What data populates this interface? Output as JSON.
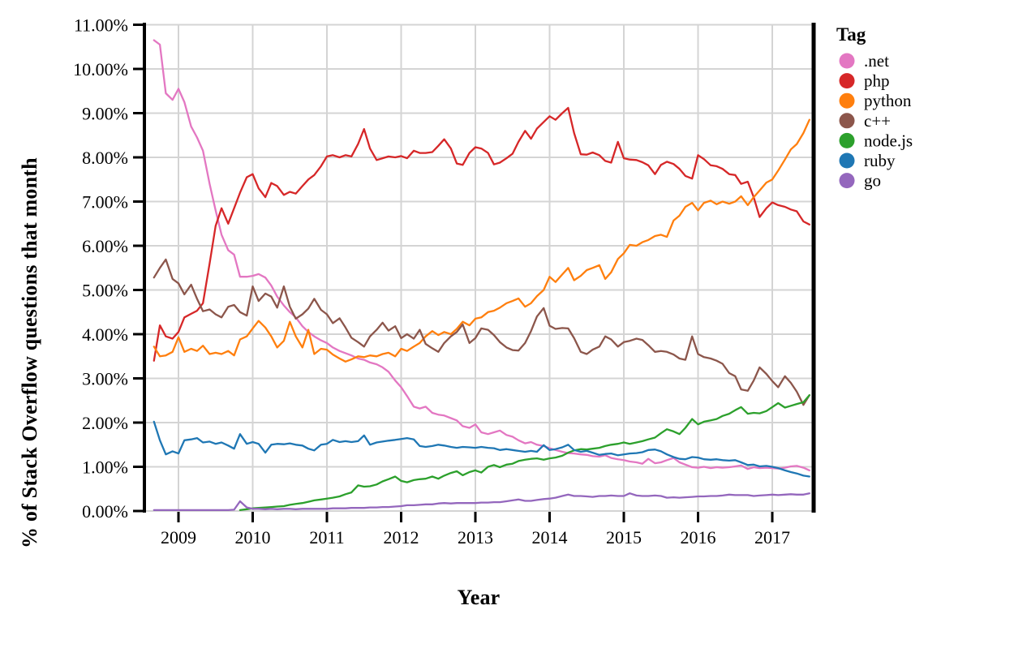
{
  "chart_data": {
    "type": "line",
    "title": "",
    "xlabel": "Year",
    "ylabel": "% of Stack Overflow questions that month",
    "legend_title": "Tag",
    "legend_position": "right",
    "grid": true,
    "xlim": [
      2008.55,
      2017.62
    ],
    "ylim": [
      0,
      11
    ],
    "x_ticks": [
      2009,
      2010,
      2011,
      2012,
      2013,
      2014,
      2015,
      2016,
      2017
    ],
    "x_tick_labels": [
      "2009",
      "2010",
      "2011",
      "2012",
      "2013",
      "2014",
      "2015",
      "2016",
      "2017"
    ],
    "y_ticks": [
      0,
      1,
      2,
      3,
      4,
      5,
      6,
      7,
      8,
      9,
      10,
      11
    ],
    "y_tick_labels": [
      "0.00%",
      "1.00%",
      "2.00%",
      "3.00%",
      "4.00%",
      "5.00%",
      "6.00%",
      "7.00%",
      "8.00%",
      "9.00%",
      "10.00%",
      "11.00%"
    ],
    "x": [
      2008.67,
      2008.75,
      2008.83,
      2008.92,
      2009.0,
      2009.08,
      2009.17,
      2009.25,
      2009.33,
      2009.42,
      2009.5,
      2009.58,
      2009.67,
      2009.75,
      2009.83,
      2009.92,
      2010.0,
      2010.08,
      2010.17,
      2010.25,
      2010.33,
      2010.42,
      2010.5,
      2010.58,
      2010.67,
      2010.75,
      2010.83,
      2010.92,
      2011.0,
      2011.08,
      2011.17,
      2011.25,
      2011.33,
      2011.42,
      2011.5,
      2011.58,
      2011.67,
      2011.75,
      2011.83,
      2011.92,
      2012.0,
      2012.08,
      2012.17,
      2012.25,
      2012.33,
      2012.42,
      2012.5,
      2012.58,
      2012.67,
      2012.75,
      2012.83,
      2012.92,
      2013.0,
      2013.08,
      2013.17,
      2013.25,
      2013.33,
      2013.42,
      2013.5,
      2013.58,
      2013.67,
      2013.75,
      2013.83,
      2013.92,
      2014.0,
      2014.08,
      2014.17,
      2014.25,
      2014.33,
      2014.42,
      2014.5,
      2014.58,
      2014.67,
      2014.75,
      2014.83,
      2014.92,
      2015.0,
      2015.08,
      2015.17,
      2015.25,
      2015.33,
      2015.42,
      2015.5,
      2015.58,
      2015.67,
      2015.75,
      2015.83,
      2015.92,
      2016.0,
      2016.08,
      2016.17,
      2016.25,
      2016.33,
      2016.42,
      2016.5,
      2016.58,
      2016.67,
      2016.75,
      2016.83,
      2016.92,
      2017.0,
      2017.08,
      2017.17,
      2017.25,
      2017.33,
      2017.42,
      2017.5
    ],
    "series": [
      {
        "name": ".net",
        "color": "#e377c2",
        "values": [
          10.65,
          10.55,
          9.45,
          9.3,
          9.55,
          9.25,
          8.7,
          8.45,
          8.15,
          7.4,
          6.8,
          6.25,
          5.9,
          5.8,
          5.3,
          5.3,
          5.32,
          5.36,
          5.28,
          5.1,
          4.85,
          4.65,
          4.5,
          4.38,
          4.18,
          4.05,
          3.95,
          3.86,
          3.8,
          3.7,
          3.62,
          3.57,
          3.52,
          3.45,
          3.42,
          3.36,
          3.32,
          3.25,
          3.15,
          2.95,
          2.8,
          2.6,
          2.36,
          2.32,
          2.36,
          2.22,
          2.18,
          2.16,
          2.1,
          2.05,
          1.92,
          1.88,
          1.96,
          1.78,
          1.74,
          1.78,
          1.82,
          1.72,
          1.68,
          1.6,
          1.53,
          1.56,
          1.5,
          1.47,
          1.42,
          1.38,
          1.34,
          1.31,
          1.3,
          1.28,
          1.27,
          1.24,
          1.23,
          1.26,
          1.2,
          1.17,
          1.15,
          1.12,
          1.1,
          1.07,
          1.18,
          1.08,
          1.1,
          1.15,
          1.2,
          1.1,
          1.05,
          0.99,
          0.98,
          1.0,
          0.97,
          0.99,
          0.98,
          0.99,
          1.01,
          1.03,
          0.95,
          0.99,
          0.97,
          0.98,
          0.97,
          0.96,
          0.98,
          1.01,
          1.02,
          0.98,
          0.92
        ]
      },
      {
        "name": "php",
        "color": "#d62728",
        "values": [
          3.4,
          4.2,
          3.95,
          3.9,
          4.05,
          4.38,
          4.46,
          4.53,
          4.7,
          5.6,
          6.45,
          6.85,
          6.5,
          6.85,
          7.2,
          7.55,
          7.62,
          7.3,
          7.1,
          7.42,
          7.35,
          7.15,
          7.22,
          7.18,
          7.35,
          7.5,
          7.6,
          7.8,
          8.02,
          8.05,
          8.0,
          8.05,
          8.02,
          8.3,
          8.64,
          8.2,
          7.94,
          7.98,
          8.02,
          8.0,
          8.03,
          7.98,
          8.15,
          8.1,
          8.1,
          8.12,
          8.26,
          8.41,
          8.2,
          7.86,
          7.83,
          8.1,
          8.23,
          8.2,
          8.1,
          7.84,
          7.88,
          7.98,
          8.08,
          8.35,
          8.6,
          8.42,
          8.65,
          8.8,
          8.93,
          8.85,
          9.0,
          9.12,
          8.55,
          8.07,
          8.06,
          8.11,
          8.05,
          7.92,
          7.88,
          8.35,
          7.98,
          7.95,
          7.94,
          7.89,
          7.82,
          7.62,
          7.83,
          7.9,
          7.85,
          7.74,
          7.58,
          7.52,
          8.05,
          7.96,
          7.82,
          7.8,
          7.74,
          7.62,
          7.6,
          7.4,
          7.45,
          7.1,
          6.65,
          6.85,
          6.98,
          6.92,
          6.88,
          6.82,
          6.78,
          6.55,
          6.48
        ]
      },
      {
        "name": "python",
        "color": "#ff7f0e",
        "values": [
          3.72,
          3.5,
          3.52,
          3.6,
          3.93,
          3.6,
          3.67,
          3.62,
          3.74,
          3.55,
          3.58,
          3.55,
          3.62,
          3.52,
          3.88,
          3.95,
          4.13,
          4.3,
          4.15,
          3.95,
          3.7,
          3.85,
          4.28,
          3.95,
          3.7,
          4.1,
          3.55,
          3.67,
          3.65,
          3.54,
          3.45,
          3.38,
          3.43,
          3.5,
          3.48,
          3.52,
          3.5,
          3.55,
          3.58,
          3.5,
          3.67,
          3.62,
          3.72,
          3.8,
          3.95,
          4.07,
          3.98,
          4.05,
          4.0,
          4.12,
          4.28,
          4.2,
          4.35,
          4.38,
          4.5,
          4.53,
          4.6,
          4.7,
          4.75,
          4.81,
          4.62,
          4.7,
          4.86,
          5.0,
          5.3,
          5.18,
          5.35,
          5.5,
          5.22,
          5.32,
          5.45,
          5.5,
          5.56,
          5.25,
          5.4,
          5.7,
          5.83,
          6.02,
          6.0,
          6.08,
          6.13,
          6.22,
          6.25,
          6.2,
          6.57,
          6.68,
          6.88,
          6.97,
          6.8,
          6.97,
          7.02,
          6.94,
          7.0,
          6.95,
          7.0,
          7.12,
          6.92,
          7.1,
          7.25,
          7.43,
          7.5,
          7.7,
          7.95,
          8.18,
          8.3,
          8.55,
          8.85
        ]
      },
      {
        "name": "c++",
        "color": "#8c564b",
        "values": [
          5.28,
          5.5,
          5.69,
          5.25,
          5.15,
          4.9,
          5.12,
          4.8,
          4.52,
          4.56,
          4.45,
          4.38,
          4.62,
          4.66,
          4.5,
          4.42,
          5.08,
          4.75,
          4.92,
          4.85,
          4.6,
          5.08,
          4.62,
          4.35,
          4.45,
          4.58,
          4.8,
          4.55,
          4.45,
          4.25,
          4.36,
          4.15,
          3.92,
          3.82,
          3.72,
          3.95,
          4.1,
          4.26,
          4.08,
          4.18,
          3.91,
          4.0,
          3.9,
          4.1,
          3.78,
          3.68,
          3.6,
          3.8,
          3.95,
          4.05,
          4.22,
          3.8,
          3.91,
          4.13,
          4.1,
          3.98,
          3.82,
          3.7,
          3.64,
          3.63,
          3.8,
          4.07,
          4.4,
          4.59,
          4.19,
          4.12,
          4.14,
          4.13,
          3.91,
          3.6,
          3.55,
          3.65,
          3.72,
          3.95,
          3.88,
          3.72,
          3.82,
          3.85,
          3.9,
          3.87,
          3.75,
          3.6,
          3.62,
          3.6,
          3.54,
          3.45,
          3.42,
          3.95,
          3.55,
          3.48,
          3.45,
          3.4,
          3.33,
          3.12,
          3.05,
          2.75,
          2.72,
          2.95,
          3.25,
          3.1,
          2.94,
          2.8,
          3.05,
          2.9,
          2.7,
          2.4,
          2.62
        ]
      },
      {
        "name": "node.js",
        "color": "#2ca02c",
        "values": [
          null,
          null,
          null,
          null,
          null,
          null,
          null,
          null,
          null,
          null,
          null,
          null,
          null,
          null,
          0.02,
          0.04,
          0.06,
          0.07,
          0.08,
          0.09,
          0.1,
          0.11,
          0.14,
          0.16,
          0.18,
          0.21,
          0.24,
          0.26,
          0.28,
          0.3,
          0.33,
          0.38,
          0.42,
          0.58,
          0.55,
          0.56,
          0.6,
          0.67,
          0.72,
          0.78,
          0.68,
          0.65,
          0.7,
          0.72,
          0.73,
          0.78,
          0.73,
          0.8,
          0.86,
          0.9,
          0.81,
          0.88,
          0.92,
          0.87,
          1.0,
          1.04,
          0.99,
          1.05,
          1.07,
          1.13,
          1.16,
          1.18,
          1.19,
          1.16,
          1.19,
          1.21,
          1.25,
          1.32,
          1.37,
          1.4,
          1.39,
          1.41,
          1.43,
          1.47,
          1.5,
          1.52,
          1.55,
          1.52,
          1.55,
          1.58,
          1.62,
          1.66,
          1.76,
          1.85,
          1.8,
          1.74,
          1.88,
          2.08,
          1.96,
          2.02,
          2.05,
          2.08,
          2.15,
          2.2,
          2.28,
          2.35,
          2.2,
          2.22,
          2.21,
          2.26,
          2.35,
          2.44,
          2.34,
          2.38,
          2.42,
          2.46,
          2.62
        ]
      },
      {
        "name": "ruby",
        "color": "#1f77b4",
        "values": [
          2.02,
          1.6,
          1.28,
          1.35,
          1.3,
          1.6,
          1.62,
          1.65,
          1.55,
          1.57,
          1.52,
          1.55,
          1.48,
          1.41,
          1.74,
          1.52,
          1.56,
          1.52,
          1.32,
          1.5,
          1.52,
          1.51,
          1.53,
          1.5,
          1.48,
          1.41,
          1.37,
          1.5,
          1.52,
          1.61,
          1.56,
          1.58,
          1.56,
          1.58,
          1.71,
          1.5,
          1.55,
          1.57,
          1.59,
          1.61,
          1.63,
          1.65,
          1.62,
          1.47,
          1.45,
          1.47,
          1.5,
          1.48,
          1.45,
          1.43,
          1.45,
          1.44,
          1.43,
          1.45,
          1.43,
          1.42,
          1.38,
          1.4,
          1.38,
          1.36,
          1.34,
          1.36,
          1.34,
          1.49,
          1.38,
          1.4,
          1.44,
          1.5,
          1.38,
          1.34,
          1.36,
          1.32,
          1.27,
          1.29,
          1.3,
          1.26,
          1.28,
          1.3,
          1.31,
          1.33,
          1.38,
          1.39,
          1.35,
          1.28,
          1.22,
          1.18,
          1.17,
          1.22,
          1.21,
          1.17,
          1.16,
          1.17,
          1.15,
          1.14,
          1.15,
          1.1,
          1.04,
          1.05,
          1.01,
          1.02,
          1.0,
          0.97,
          0.92,
          0.88,
          0.85,
          0.8,
          0.78
        ]
      },
      {
        "name": "go",
        "color": "#9467bd",
        "values": [
          0.02,
          0.02,
          0.02,
          0.02,
          0.02,
          0.02,
          0.02,
          0.02,
          0.02,
          0.02,
          0.02,
          0.02,
          0.02,
          0.03,
          0.22,
          0.08,
          0.05,
          0.05,
          0.04,
          0.05,
          0.04,
          0.05,
          0.05,
          0.04,
          0.05,
          0.05,
          0.05,
          0.05,
          0.05,
          0.06,
          0.06,
          0.06,
          0.07,
          0.07,
          0.07,
          0.08,
          0.08,
          0.09,
          0.09,
          0.1,
          0.11,
          0.13,
          0.13,
          0.14,
          0.15,
          0.15,
          0.17,
          0.18,
          0.17,
          0.18,
          0.18,
          0.18,
          0.18,
          0.19,
          0.19,
          0.2,
          0.2,
          0.22,
          0.24,
          0.26,
          0.23,
          0.23,
          0.25,
          0.27,
          0.28,
          0.3,
          0.34,
          0.37,
          0.34,
          0.34,
          0.33,
          0.32,
          0.34,
          0.34,
          0.35,
          0.34,
          0.34,
          0.4,
          0.35,
          0.34,
          0.34,
          0.35,
          0.34,
          0.3,
          0.31,
          0.3,
          0.31,
          0.32,
          0.33,
          0.33,
          0.34,
          0.34,
          0.35,
          0.37,
          0.36,
          0.36,
          0.36,
          0.34,
          0.35,
          0.36,
          0.37,
          0.36,
          0.37,
          0.38,
          0.37,
          0.37,
          0.4
        ]
      }
    ],
    "style": {
      "grid_color": "#d4d4d4",
      "spine_color": "#000000",
      "background": "#ffffff"
    }
  }
}
